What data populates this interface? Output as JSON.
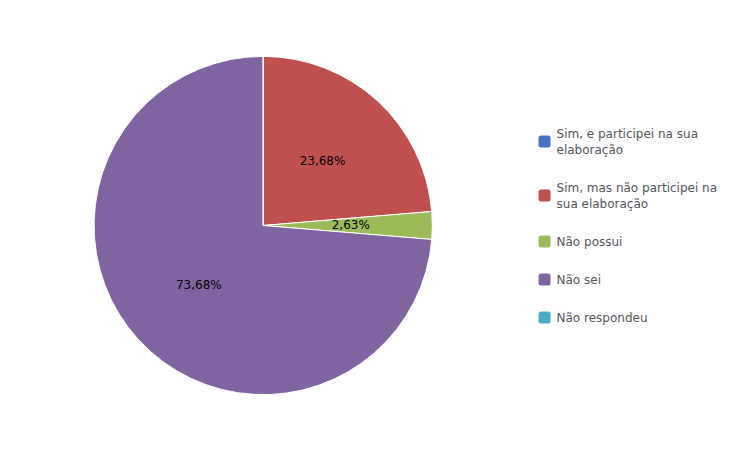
{
  "chart_data": {
    "type": "pie",
    "categories": [
      "Sim, e participei na sua\nelaboração",
      "Sim, mas não participei na\nsua elaboração",
      "Não possui",
      "Não sei",
      "Não respondeu"
    ],
    "values": [
      0.0001,
      23.68,
      2.63,
      73.68,
      0.0001
    ],
    "value_labels": [
      null,
      "23,68%",
      "2,63%",
      "73,68%",
      null
    ],
    "colors": [
      "#4472c4",
      "#c0504d",
      "#9bbb59",
      "#8064a2",
      "#4bacc6"
    ],
    "data_labels": true,
    "legend": "right"
  }
}
